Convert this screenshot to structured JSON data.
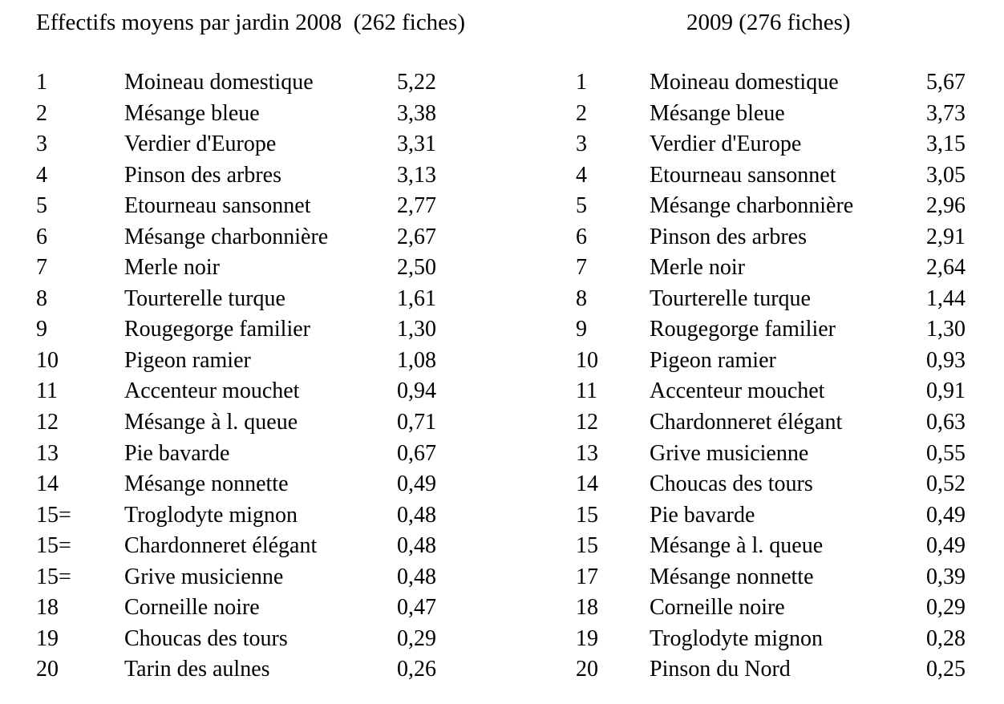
{
  "colors": {
    "background": "#ffffff",
    "text": "#000000"
  },
  "tables": [
    {
      "title": "Effectifs moyens par jardin 2008  (262 fiches)",
      "columns": [
        "rank",
        "species",
        "value"
      ],
      "rows": [
        {
          "rank": "1",
          "species": "Moineau domestique",
          "value": "5,22"
        },
        {
          "rank": "2",
          "species": "Mésange bleue",
          "value": "3,38"
        },
        {
          "rank": "3",
          "species": "Verdier d'Europe",
          "value": "3,31"
        },
        {
          "rank": "4",
          "species": "Pinson des arbres",
          "value": "3,13"
        },
        {
          "rank": "5",
          "species": "Etourneau sansonnet",
          "value": "2,77"
        },
        {
          "rank": "6",
          "species": "Mésange charbonnière",
          "value": "2,67"
        },
        {
          "rank": "7",
          "species": "Merle noir",
          "value": "2,50"
        },
        {
          "rank": "8",
          "species": "Tourterelle turque",
          "value": "1,61"
        },
        {
          "rank": "9",
          "species": "Rougegorge familier",
          "value": "1,30"
        },
        {
          "rank": "10",
          "species": "Pigeon ramier",
          "value": "1,08"
        },
        {
          "rank": "11",
          "species": "Accenteur mouchet",
          "value": "0,94"
        },
        {
          "rank": "12",
          "species": "Mésange à l. queue",
          "value": "0,71"
        },
        {
          "rank": "13",
          "species": "Pie bavarde",
          "value": "0,67"
        },
        {
          "rank": "14",
          "species": "Mésange nonnette",
          "value": "0,49"
        },
        {
          "rank": "15=",
          "species": "Troglodyte mignon",
          "value": "0,48"
        },
        {
          "rank": "15=",
          "species": "Chardonneret élégant",
          "value": "0,48"
        },
        {
          "rank": "15=",
          "species": "Grive musicienne",
          "value": "0,48"
        },
        {
          "rank": "18",
          "species": "Corneille noire",
          "value": "0,47"
        },
        {
          "rank": "19",
          "species": "Choucas des tours",
          "value": "0,29"
        },
        {
          "rank": "20",
          "species": "Tarin des aulnes",
          "value": "0,26"
        }
      ]
    },
    {
      "title": "2009 (276 fiches)",
      "columns": [
        "rank",
        "species",
        "value"
      ],
      "rows": [
        {
          "rank": "1",
          "species": "Moineau domestique",
          "value": "5,67"
        },
        {
          "rank": "2",
          "species": "Mésange bleue",
          "value": "3,73"
        },
        {
          "rank": "3",
          "species": "Verdier d'Europe",
          "value": "3,15"
        },
        {
          "rank": "4",
          "species": "Etourneau sansonnet",
          "value": "3,05"
        },
        {
          "rank": "5",
          "species": "Mésange charbonnière",
          "value": "2,96"
        },
        {
          "rank": "6",
          "species": "Pinson des arbres",
          "value": "2,91"
        },
        {
          "rank": "7",
          "species": "Merle noir",
          "value": "2,64"
        },
        {
          "rank": "8",
          "species": "Tourterelle turque",
          "value": "1,44"
        },
        {
          "rank": "9",
          "species": "Rougegorge familier",
          "value": "1,30"
        },
        {
          "rank": "10",
          "species": "Pigeon ramier",
          "value": "0,93"
        },
        {
          "rank": "11",
          "species": "Accenteur mouchet",
          "value": "0,91"
        },
        {
          "rank": "12",
          "species": "Chardonneret élégant",
          "value": "0,63"
        },
        {
          "rank": "13",
          "species": "Grive musicienne",
          "value": "0,55"
        },
        {
          "rank": "14",
          "species": "Choucas des tours",
          "value": "0,52"
        },
        {
          "rank": "15",
          "species": "Pie bavarde",
          "value": "0,49"
        },
        {
          "rank": "15",
          "species": "Mésange à l. queue",
          "value": "0,49"
        },
        {
          "rank": "17",
          "species": "Mésange nonnette",
          "value": "0,39"
        },
        {
          "rank": "18",
          "species": "Corneille noire",
          "value": "0,29"
        },
        {
          "rank": "19",
          "species": "Troglodyte mignon",
          "value": "0,28"
        },
        {
          "rank": "20",
          "species": "Pinson du Nord",
          "value": "0,25"
        }
      ]
    }
  ]
}
